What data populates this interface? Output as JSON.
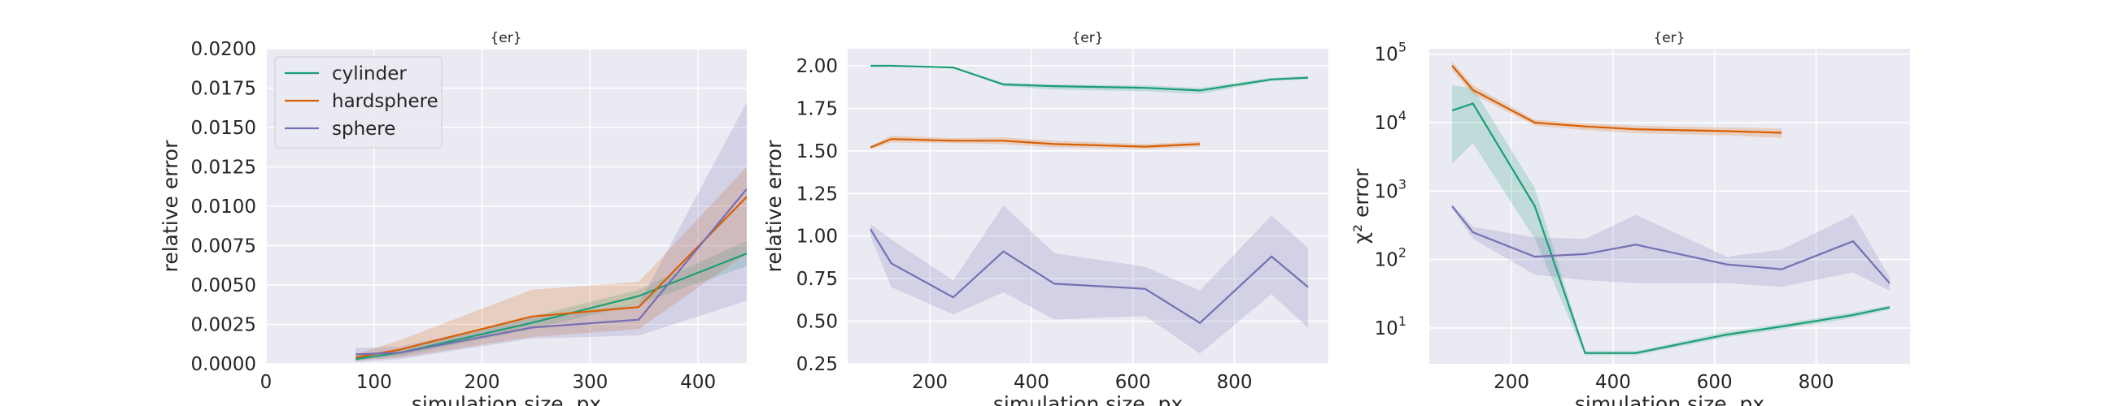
{
  "colors": {
    "cylinder": "#1b9e77",
    "hardsphere": "#d95f02",
    "sphere": "#7570b3",
    "plot_bg": "#eaeaf2",
    "grid": "#ffffff"
  },
  "chart_data": [
    {
      "type": "line",
      "title": "{er}",
      "xlabel": "simulation size, px",
      "ylabel": "relative error",
      "xlim": [
        0,
        445
      ],
      "ylim": [
        0,
        0.02
      ],
      "xticks": [
        "0",
        "100",
        "200",
        "300",
        "400"
      ],
      "yticks": [
        "0.0000",
        "0.0025",
        "0.0050",
        "0.0075",
        "0.0100",
        "0.0125",
        "0.0150",
        "0.0175",
        "0.0200"
      ],
      "grid": true,
      "legend": "upper left",
      "series": [
        {
          "name": "cylinder",
          "x": [
            83,
            124,
            246,
            345,
            445
          ],
          "y": [
            0.0003,
            0.0007,
            0.0026,
            0.0043,
            0.007
          ],
          "lower": [
            0.0002,
            0.0005,
            0.0022,
            0.0038,
            0.0062
          ],
          "upper": [
            0.0004,
            0.0009,
            0.003,
            0.0047,
            0.0078
          ]
        },
        {
          "name": "hardsphere",
          "x": [
            83,
            124,
            246,
            345,
            445
          ],
          "y": [
            0.0004,
            0.0009,
            0.003,
            0.0036,
            0.0106
          ],
          "lower": [
            0.0002,
            0.0004,
            0.0017,
            0.0022,
            0.007
          ],
          "upper": [
            0.0006,
            0.0015,
            0.0047,
            0.0052,
            0.0125
          ]
        },
        {
          "name": "sphere",
          "x": [
            83,
            124,
            246,
            345,
            445
          ],
          "y": [
            0.0006,
            0.0007,
            0.0023,
            0.0028,
            0.0111
          ],
          "lower": [
            0.0001,
            0.0003,
            0.0016,
            0.0018,
            0.004
          ],
          "upper": [
            0.001,
            0.0011,
            0.0029,
            0.0038,
            0.0166
          ]
        }
      ]
    },
    {
      "type": "line",
      "title": "{er}",
      "xlabel": "simulation size, px",
      "ylabel": "relative error",
      "xlim": [
        38,
        985
      ],
      "ylim": [
        0.25,
        2.1
      ],
      "xticks": [
        "200",
        "400",
        "600",
        "800"
      ],
      "yticks": [
        "0.25",
        "0.50",
        "0.75",
        "1.00",
        "1.25",
        "1.50",
        "1.75",
        "2.00"
      ],
      "grid": true,
      "series": [
        {
          "name": "cylinder",
          "x": [
            83,
            124,
            246,
            345,
            445,
            624,
            732,
            873,
            945
          ],
          "y": [
            2.0,
            2.0,
            1.99,
            1.89,
            1.88,
            1.87,
            1.855,
            1.92,
            1.93
          ],
          "lower": [
            2.0,
            2.0,
            1.99,
            1.88,
            1.86,
            1.85,
            1.835,
            1.91,
            1.92
          ],
          "upper": [
            2.0,
            2.0,
            1.99,
            1.9,
            1.89,
            1.885,
            1.87,
            1.93,
            1.94
          ]
        },
        {
          "name": "hardsphere",
          "x": [
            83,
            124,
            246,
            345,
            445,
            624,
            732
          ],
          "y": [
            1.52,
            1.57,
            1.56,
            1.56,
            1.54,
            1.525,
            1.54
          ],
          "lower": [
            1.51,
            1.55,
            1.545,
            1.54,
            1.52,
            1.51,
            1.525
          ],
          "upper": [
            1.53,
            1.59,
            1.575,
            1.58,
            1.56,
            1.54,
            1.555
          ]
        },
        {
          "name": "sphere",
          "x": [
            83,
            124,
            246,
            345,
            445,
            624,
            732,
            873,
            945
          ],
          "y": [
            1.04,
            0.84,
            0.64,
            0.91,
            0.72,
            0.69,
            0.49,
            0.88,
            0.7
          ],
          "lower": [
            1.0,
            0.7,
            0.54,
            0.67,
            0.51,
            0.53,
            0.31,
            0.66,
            0.46
          ],
          "upper": [
            1.07,
            0.98,
            0.74,
            1.18,
            0.9,
            0.82,
            0.68,
            1.12,
            0.93
          ]
        }
      ]
    },
    {
      "type": "line",
      "title": "{er}",
      "xlabel": "simulation size, px",
      "ylabel": "χ² error",
      "yscale": "log",
      "xlim": [
        38,
        985
      ],
      "ylim": [
        3,
        120000
      ],
      "xticks": [
        "200",
        "400",
        "600",
        "800"
      ],
      "yticks": [
        {
          "base": "10",
          "exp": "1"
        },
        {
          "base": "10",
          "exp": "2"
        },
        {
          "base": "10",
          "exp": "3"
        },
        {
          "base": "10",
          "exp": "4"
        },
        {
          "base": "10",
          "exp": "5"
        }
      ],
      "grid": true,
      "series": [
        {
          "name": "cylinder",
          "x": [
            83,
            124,
            246,
            345,
            445,
            624,
            732,
            873,
            945
          ],
          "y": [
            15000,
            19000,
            600,
            4.3,
            4.3,
            8,
            10.5,
            15.5,
            20
          ],
          "lower": [
            2500,
            5000,
            200,
            4.0,
            4.0,
            7.3,
            9.5,
            14,
            18.5
          ],
          "upper": [
            35000,
            32000,
            1100,
            4.6,
            4.6,
            8.8,
            11.5,
            17,
            21.5
          ]
        },
        {
          "name": "hardsphere",
          "x": [
            83,
            124,
            246,
            345,
            445,
            624,
            732
          ],
          "y": [
            68000,
            30000,
            10000,
            8800,
            8000,
            7500,
            7100
          ],
          "lower": [
            58000,
            26000,
            9000,
            7800,
            7000,
            6500,
            6000
          ],
          "upper": [
            78000,
            35000,
            11000,
            9800,
            9000,
            8500,
            8200
          ]
        },
        {
          "name": "sphere",
          "x": [
            83,
            124,
            246,
            345,
            445,
            624,
            732,
            873,
            945
          ],
          "y": [
            600,
            250,
            110,
            120,
            165,
            85,
            72,
            185,
            45
          ],
          "lower": [
            560,
            200,
            60,
            50,
            45,
            45,
            40,
            65,
            35
          ],
          "upper": [
            640,
            300,
            210,
            200,
            450,
            110,
            140,
            450,
            55
          ]
        }
      ]
    }
  ]
}
